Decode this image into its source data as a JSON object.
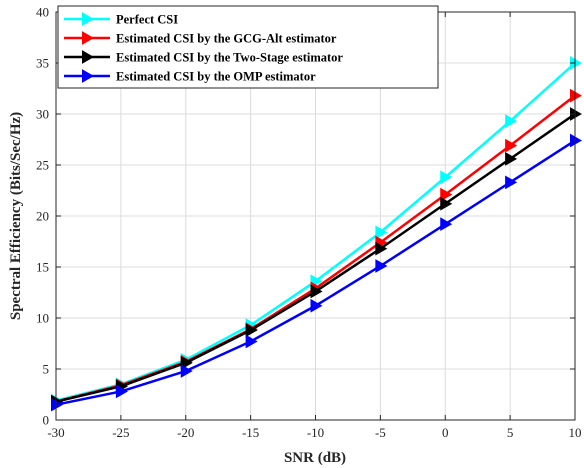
{
  "chart_data": {
    "type": "line",
    "xlabel": "SNR (dB)",
    "ylabel": "Spectral Efficiency (Bits/Sec/Hz)",
    "xlim": [
      -30,
      10
    ],
    "ylim": [
      0,
      40
    ],
    "x": [
      -30,
      -25,
      -20,
      -15,
      -10,
      -5,
      0,
      5,
      10
    ],
    "xticks": [
      "-30",
      "-25",
      "-20",
      "-15",
      "-10",
      "-5",
      "0",
      "5",
      "10"
    ],
    "yticks": [
      "0",
      "5",
      "10",
      "15",
      "20",
      "25",
      "30",
      "35",
      "40"
    ],
    "grid": true,
    "legend_position": "top-left",
    "marker": "right-pointing-triangle",
    "series": [
      {
        "name": "Perfect CSI",
        "color": "#00ffff",
        "values": [
          1.9,
          3.5,
          5.9,
          9.3,
          13.6,
          18.4,
          23.8,
          29.3,
          35.0
        ]
      },
      {
        "name": "Estimated CSI by the GCG-Alt estimator",
        "color": "#ff0000",
        "values": [
          1.8,
          3.4,
          5.7,
          8.9,
          12.9,
          17.4,
          22.1,
          26.9,
          31.8
        ]
      },
      {
        "name": "Estimated CSI by the Two-Stage estimator",
        "color": "#000000",
        "values": [
          1.8,
          3.3,
          5.6,
          8.8,
          12.6,
          16.8,
          21.2,
          25.6,
          30.0
        ]
      },
      {
        "name": "Estimated CSI by the OMP estimator",
        "color": "#0000ff",
        "values": [
          1.5,
          2.8,
          4.8,
          7.7,
          11.2,
          15.1,
          19.2,
          23.3,
          27.4
        ]
      }
    ]
  }
}
